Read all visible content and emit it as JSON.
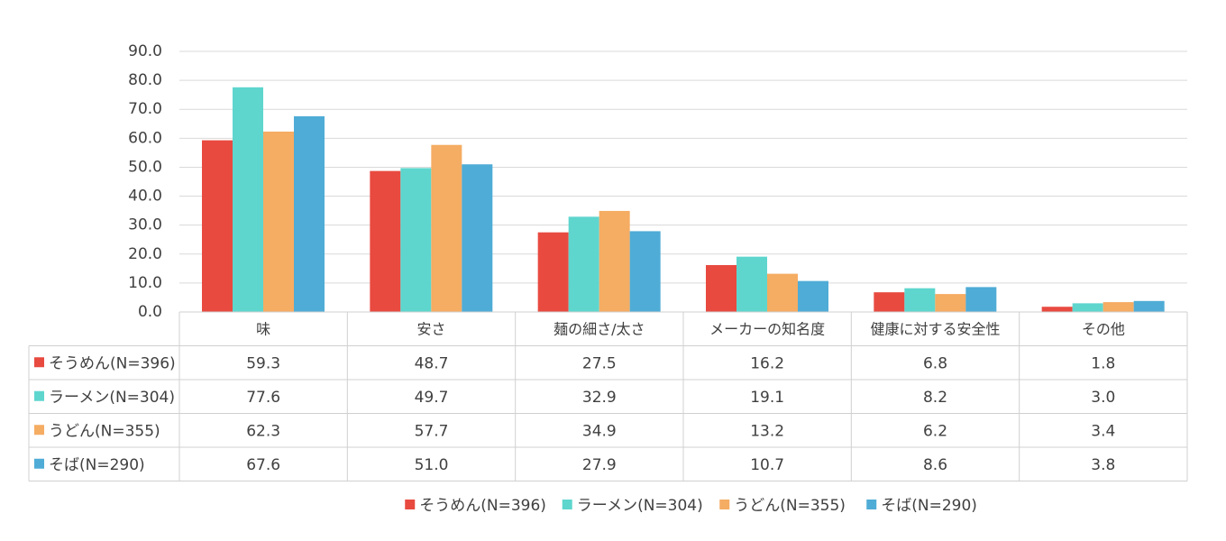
{
  "chart_data": {
    "type": "bar",
    "title": "",
    "xlabel": "",
    "ylabel": "",
    "ylim": [
      0,
      90
    ],
    "y_ticks": [
      "0.0",
      "10.0",
      "20.0",
      "30.0",
      "40.0",
      "50.0",
      "60.0",
      "70.0",
      "80.0",
      "90.0"
    ],
    "categories": [
      "味",
      "安さ",
      "麺の細さ/太さ",
      "メーカーの知名度",
      "健康に対する安全性",
      "その他"
    ],
    "series": [
      {
        "name": "そうめん(N=396)",
        "color": "#E84A40",
        "values": [
          59.3,
          48.7,
          27.5,
          16.2,
          6.8,
          1.8
        ]
      },
      {
        "name": "ラーメン(N=304)",
        "color": "#5ED6CE",
        "values": [
          77.6,
          49.7,
          32.9,
          19.1,
          8.2,
          3.0
        ]
      },
      {
        "name": "うどん(N=355)",
        "color": "#F5AC63",
        "values": [
          62.3,
          57.7,
          34.9,
          13.2,
          6.2,
          3.4
        ]
      },
      {
        "name": "そば(N=290)",
        "color": "#4FACD6",
        "values": [
          67.6,
          51.0,
          27.9,
          10.7,
          8.6,
          3.8
        ]
      }
    ],
    "table_cells": [
      [
        "59.3",
        "48.7",
        "27.5",
        "16.2",
        "6.8",
        "1.8"
      ],
      [
        "77.6",
        "49.7",
        "32.9",
        "19.1",
        "8.2",
        "3.0"
      ],
      [
        "62.3",
        "57.7",
        "34.9",
        "13.2",
        "6.2",
        "3.4"
      ],
      [
        "67.6",
        "51.0",
        "27.9",
        "10.7",
        "8.6",
        "3.8"
      ]
    ],
    "grid": true,
    "legend": "bottom"
  }
}
